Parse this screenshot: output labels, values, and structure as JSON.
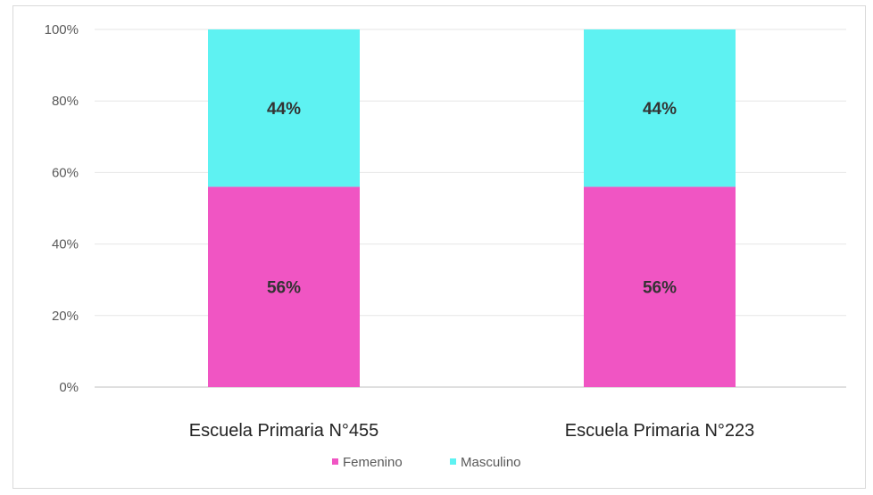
{
  "chart_data": {
    "type": "bar",
    "stacked": true,
    "categories": [
      "Escuela Primaria N°455",
      "Escuela Primaria N°223"
    ],
    "series": [
      {
        "name": "Femenino",
        "color": "#f055c3",
        "values": [
          56,
          56
        ],
        "labels": [
          "56%",
          "56%"
        ]
      },
      {
        "name": "Masculino",
        "color": "#5ef2f2",
        "values": [
          44,
          44
        ],
        "labels": [
          "44%",
          "44%"
        ]
      }
    ],
    "y_ticks": [
      "0%",
      "20%",
      "40%",
      "60%",
      "80%",
      "100%"
    ],
    "ylim": [
      0,
      100
    ],
    "grid": true,
    "legend": "bottom-center"
  }
}
